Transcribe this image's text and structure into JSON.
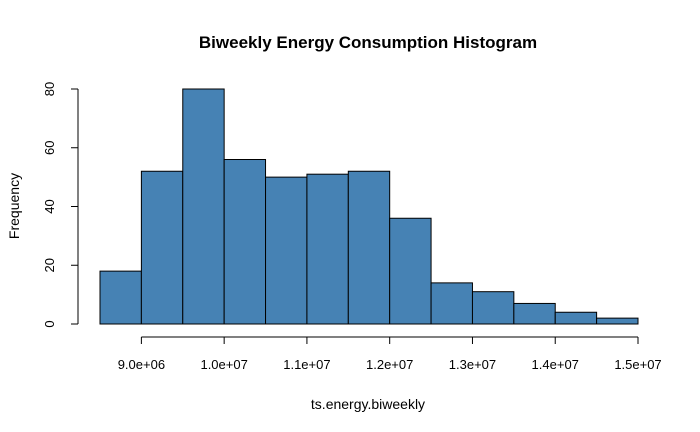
{
  "chart_data": {
    "type": "histogram",
    "title": "Biweekly Energy Consumption Histogram",
    "xlabel": "ts.energy.biweekly",
    "ylabel": "Frequency",
    "bar_color": "#4682B4",
    "xlim": [
      8500000,
      15000000
    ],
    "ylim": [
      0,
      80
    ],
    "bins": [
      {
        "start": 8500000,
        "end": 9000000,
        "count": 18
      },
      {
        "start": 9000000,
        "end": 9500000,
        "count": 52
      },
      {
        "start": 9500000,
        "end": 10000000,
        "count": 80
      },
      {
        "start": 10000000,
        "end": 10500000,
        "count": 56
      },
      {
        "start": 10500000,
        "end": 11000000,
        "count": 50
      },
      {
        "start": 11000000,
        "end": 11500000,
        "count": 51
      },
      {
        "start": 11500000,
        "end": 12000000,
        "count": 52
      },
      {
        "start": 12000000,
        "end": 12500000,
        "count": 36
      },
      {
        "start": 12500000,
        "end": 13000000,
        "count": 14
      },
      {
        "start": 13000000,
        "end": 13500000,
        "count": 11
      },
      {
        "start": 13500000,
        "end": 14000000,
        "count": 7
      },
      {
        "start": 14000000,
        "end": 14500000,
        "count": 4
      },
      {
        "start": 14500000,
        "end": 15000000,
        "count": 2
      }
    ],
    "x_ticks": [
      {
        "value": 9000000,
        "label": "9.0e+06"
      },
      {
        "value": 10000000,
        "label": "1.0e+07"
      },
      {
        "value": 11000000,
        "label": "1.1e+07"
      },
      {
        "value": 12000000,
        "label": "1.2e+07"
      },
      {
        "value": 13000000,
        "label": "1.3e+07"
      },
      {
        "value": 14000000,
        "label": "1.4e+07"
      },
      {
        "value": 15000000,
        "label": "1.5e+07"
      }
    ],
    "y_ticks": [
      {
        "value": 0,
        "label": "0"
      },
      {
        "value": 20,
        "label": "20"
      },
      {
        "value": 40,
        "label": "40"
      },
      {
        "value": 60,
        "label": "60"
      },
      {
        "value": 80,
        "label": "80"
      }
    ],
    "grid": false,
    "legend": "none"
  }
}
